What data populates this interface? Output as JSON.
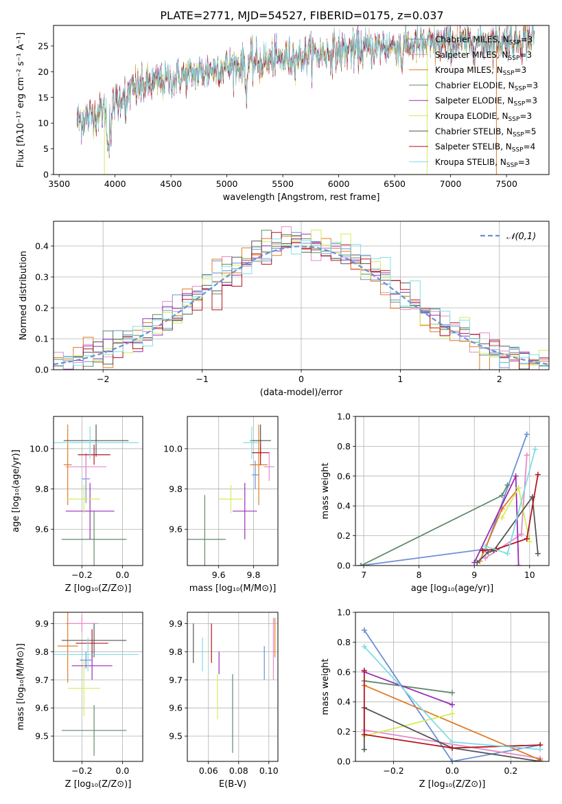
{
  "title": "PLATE=2771, MJD=54527, FIBERID=0175, z=0.037",
  "models": [
    {
      "name": "Chabrier MILES",
      "nssp": "3",
      "color": "#6b8fd6"
    },
    {
      "name": "Salpeter MILES",
      "nssp": "3",
      "color": "#e58ac9"
    },
    {
      "name": "Kroupa MILES",
      "nssp": "3",
      "color": "#e07b25"
    },
    {
      "name": "Chabrier ELODIE",
      "nssp": "3",
      "color": "#5e8a6a"
    },
    {
      "name": "Salpeter ELODIE",
      "nssp": "3",
      "color": "#9b2bb5"
    },
    {
      "name": "Kroupa ELODIE",
      "nssp": "3",
      "color": "#d4ec5a"
    },
    {
      "name": "Chabrier STELIB",
      "nssp": "5",
      "color": "#555555"
    },
    {
      "name": "Salpeter STELIB",
      "nssp": "4",
      "color": "#b3151c"
    },
    {
      "name": "Kroupa STELIB",
      "nssp": "3",
      "color": "#7fdde6"
    }
  ],
  "chart_data": [
    {
      "id": "spectrum",
      "type": "line",
      "xlabel": "wavelength [Angstrom, rest frame]",
      "ylabel": "Flux [fλ10⁻¹⁷ erg cm⁻² s⁻¹ A⁻¹]",
      "xlim": [
        3450,
        7880
      ],
      "ylim": [
        0,
        29
      ],
      "xticks": [
        3500,
        4000,
        4500,
        5000,
        5500,
        6000,
        6500,
        7000,
        7500
      ],
      "yticks": [
        0,
        5,
        10,
        15,
        20,
        25
      ],
      "grid": false,
      "legend": "top-right",
      "x_range": [
        3660,
        7750
      ],
      "continuum_points": [
        [
          3660,
          10.5
        ],
        [
          3800,
          11.5
        ],
        [
          3950,
          13
        ],
        [
          4100,
          16
        ],
        [
          4300,
          17.5
        ],
        [
          4600,
          19
        ],
        [
          5000,
          21
        ],
        [
          5500,
          22.5
        ],
        [
          6000,
          24
        ],
        [
          6500,
          25
        ],
        [
          7000,
          25.5
        ],
        [
          7500,
          26
        ],
        [
          7750,
          26.5
        ]
      ]
    },
    {
      "id": "residuals",
      "type": "step",
      "xlabel": "(data-model)/error",
      "ylabel": "Normed distribution",
      "xlim": [
        -2.5,
        2.5
      ],
      "ylim": [
        0,
        0.48
      ],
      "xticks": [
        -2,
        -1,
        0,
        1,
        2
      ],
      "yticks": [
        0,
        0.1,
        0.2,
        0.3,
        0.4
      ],
      "grid": true,
      "legend": "top-right",
      "reference_curve": {
        "name": "𝒩(0,1)",
        "mean": 0,
        "std": 1,
        "color": "#6b8fd6"
      },
      "bin_width": 0.1
    },
    {
      "id": "age_vs_Z",
      "type": "errorbar",
      "xlabel": "Z [log₁₀(Z/Z⊙)]",
      "ylabel": "age  [log₁₀(age/yr)]",
      "xlim": [
        -0.34,
        0.1
      ],
      "ylim": [
        9.42,
        10.16
      ],
      "xticks": [
        -0.2,
        0.0
      ],
      "yticks": [
        9.6,
        9.8,
        10.0
      ],
      "grid": true,
      "points": [
        {
          "x": -0.18,
          "xerr": 0.02,
          "y": 9.85,
          "yerr": 0.12
        },
        {
          "x": -0.18,
          "xerr": 0.1,
          "y": 9.91,
          "yerr": 0.07
        },
        {
          "x": -0.27,
          "xerr": 0.02,
          "y": 9.92,
          "yerr": 0.2
        },
        {
          "x": -0.14,
          "xerr": 0.16,
          "y": 9.55,
          "yerr": 0.14
        },
        {
          "x": -0.16,
          "xerr": 0.12,
          "y": 9.69,
          "yerr": 0.14
        },
        {
          "x": -0.19,
          "xerr": 0.08,
          "y": 9.75,
          "yerr": 0.07
        },
        {
          "x": -0.13,
          "xerr": 0.16,
          "y": 10.04,
          "yerr": 0.08
        },
        {
          "x": -0.14,
          "xerr": 0.08,
          "y": 9.97,
          "yerr": 0.05
        },
        {
          "x": -0.16,
          "xerr": 0.24,
          "y": 10.03,
          "yerr": 0.08
        }
      ]
    },
    {
      "id": "age_vs_mass",
      "type": "errorbar",
      "xlabel": "mass [log₁₀(M/M⊙)]",
      "ylabel": "",
      "xlim": [
        9.42,
        9.94
      ],
      "ylim": [
        9.42,
        10.16
      ],
      "xticks": [
        9.6,
        9.8
      ],
      "yticks": [
        9.6,
        9.8,
        10.0
      ],
      "grid": true,
      "points": [
        {
          "x": 9.81,
          "xerr": 0.02,
          "y": 9.87,
          "yerr": 0.07
        },
        {
          "x": 9.89,
          "xerr": 0.03,
          "y": 9.91,
          "yerr": 0.07
        },
        {
          "x": 9.83,
          "xerr": 0.05,
          "y": 9.92,
          "yerr": 0.2
        },
        {
          "x": 9.52,
          "xerr": 0.12,
          "y": 9.55,
          "yerr": 0.22
        },
        {
          "x": 9.75,
          "xerr": 0.07,
          "y": 9.69,
          "yerr": 0.14
        },
        {
          "x": 9.67,
          "xerr": 0.07,
          "y": 9.75,
          "yerr": 0.07
        },
        {
          "x": 9.84,
          "xerr": 0.06,
          "y": 10.04,
          "yerr": 0.08
        },
        {
          "x": 9.84,
          "xerr": 0.05,
          "y": 9.98,
          "yerr": 0.06
        },
        {
          "x": 9.79,
          "xerr": 0.05,
          "y": 10.03,
          "yerr": 0.08
        }
      ]
    },
    {
      "id": "weight_vs_age",
      "type": "line",
      "xlabel": "age  [log₁₀(age/yr)]",
      "ylabel": "mass weight",
      "xlim": [
        6.85,
        10.35
      ],
      "ylim": [
        0,
        1.0
      ],
      "xticks": [
        7,
        8,
        9,
        10
      ],
      "yticks": [
        0.0,
        0.2,
        0.4,
        0.6,
        0.8,
        1.0
      ],
      "grid": true,
      "series": [
        {
          "x": [
            6.95,
            9.2,
            9.95
          ],
          "y": [
            0.0,
            0.11,
            0.88
          ]
        },
        {
          "x": [
            9.2,
            9.85,
            9.95
          ],
          "y": [
            0.05,
            0.21,
            0.74
          ]
        },
        {
          "x": [
            9.1,
            9.5,
            9.8
          ],
          "y": [
            0.03,
            0.38,
            0.52
          ]
        },
        {
          "x": [
            6.95,
            9.5,
            9.6
          ],
          "y": [
            0.0,
            0.47,
            0.54
          ]
        },
        {
          "x": [
            9.0,
            9.75,
            9.8
          ],
          "y": [
            0.02,
            0.6,
            0.0
          ]
        },
        {
          "x": [
            9.5,
            9.8,
            10.0
          ],
          "y": [
            0.32,
            0.52,
            0.16
          ]
        },
        {
          "x": [
            9.05,
            9.25,
            9.35,
            10.05,
            10.15
          ],
          "y": [
            0.02,
            0.09,
            0.1,
            0.46,
            0.08
          ]
        },
        {
          "x": [
            9.15,
            9.4,
            9.95,
            10.15
          ],
          "y": [
            0.1,
            0.11,
            0.18,
            0.61
          ]
        },
        {
          "x": [
            9.2,
            9.6,
            10.1
          ],
          "y": [
            0.13,
            0.08,
            0.78
          ]
        }
      ]
    },
    {
      "id": "mass_vs_Z",
      "type": "errorbar",
      "xlabel": "Z [log₁₀(Z/Z⊙)]",
      "ylabel": "mass [log₁₀(M/M⊙)]",
      "xlim": [
        -0.34,
        0.1
      ],
      "ylim": [
        9.41,
        9.94
      ],
      "xticks": [
        -0.2,
        0.0
      ],
      "yticks": [
        9.5,
        9.6,
        9.7,
        9.8,
        9.9
      ],
      "grid": true,
      "points": [
        {
          "x": -0.18,
          "xerr": 0.03,
          "y": 9.77,
          "yerr": 0.03
        },
        {
          "x": -0.2,
          "xerr": 0.08,
          "y": 9.9,
          "yerr": 0.03
        },
        {
          "x": -0.27,
          "xerr": 0.05,
          "y": 9.82,
          "yerr": 0.13
        },
        {
          "x": -0.14,
          "xerr": 0.16,
          "y": 9.52,
          "yerr": 0.09
        },
        {
          "x": -0.15,
          "xerr": 0.1,
          "y": 9.75,
          "yerr": 0.05
        },
        {
          "x": -0.19,
          "xerr": 0.08,
          "y": 9.67,
          "yerr": 0.1
        },
        {
          "x": -0.14,
          "xerr": 0.16,
          "y": 9.84,
          "yerr": 0.06
        },
        {
          "x": -0.15,
          "xerr": 0.08,
          "y": 9.83,
          "yerr": 0.05
        },
        {
          "x": -0.17,
          "xerr": 0.25,
          "y": 9.79,
          "yerr": 0.06
        }
      ]
    },
    {
      "id": "mass_vs_ebv",
      "type": "errorbar",
      "xlabel": "E(B-V)",
      "ylabel": "",
      "xlim": [
        0.046,
        0.106
      ],
      "ylim": [
        9.41,
        9.94
      ],
      "xticks": [
        0.06,
        0.08,
        0.1
      ],
      "yticks": [
        9.5,
        9.6,
        9.7,
        9.8,
        9.9
      ],
      "grid": true,
      "points": [
        {
          "x": 0.097,
          "xerr": 0.0,
          "y": 9.76,
          "yerr": 0.06
        },
        {
          "x": 0.103,
          "xerr": 0.0,
          "y": 9.81,
          "yerr": 0.11
        },
        {
          "x": 0.104,
          "xerr": 0.0,
          "y": 9.85,
          "yerr": 0.07
        },
        {
          "x": 0.076,
          "xerr": 0.0,
          "y": 9.58,
          "yerr": 0.14
        },
        {
          "x": 0.067,
          "xerr": 0.0,
          "y": 9.76,
          "yerr": 0.04
        },
        {
          "x": 0.066,
          "xerr": 0.0,
          "y": 9.64,
          "yerr": 0.08
        },
        {
          "x": 0.05,
          "xerr": 0.0,
          "y": 9.83,
          "yerr": 0.07
        },
        {
          "x": 0.062,
          "xerr": 0.0,
          "y": 9.83,
          "yerr": 0.07
        },
        {
          "x": 0.056,
          "xerr": 0.0,
          "y": 9.79,
          "yerr": 0.06
        }
      ]
    },
    {
      "id": "weight_vs_Z",
      "type": "line",
      "xlabel": "Z [log₁₀(Z/Z⊙)]",
      "ylabel": "mass weight",
      "xlim": [
        -0.33,
        0.33
      ],
      "ylim": [
        0,
        1.0
      ],
      "xticks": [
        -0.2,
        0.0,
        0.2
      ],
      "yticks": [
        0.0,
        0.2,
        0.4,
        0.6,
        0.8,
        1.0
      ],
      "grid": true,
      "series": [
        {
          "x": [
            -0.3,
            0.0,
            0.3
          ],
          "y": [
            0.88,
            0.0,
            0.11
          ]
        },
        {
          "x": [
            -0.3,
            0.3
          ],
          "y": [
            0.21,
            0.02
          ]
        },
        {
          "x": [
            -0.3,
            0.3
          ],
          "y": [
            0.51,
            0.01
          ]
        },
        {
          "x": [
            -0.3,
            0.0
          ],
          "y": [
            0.54,
            0.46
          ]
        },
        {
          "x": [
            -0.3,
            0.0
          ],
          "y": [
            0.6,
            0.38
          ]
        },
        {
          "x": [
            -0.3,
            0.0
          ],
          "y": [
            0.17,
            0.32
          ]
        },
        {
          "x": [
            -0.3,
            -0.3,
            0.0,
            0.3
          ],
          "y": [
            0.08,
            0.36,
            0.09,
            0.0
          ]
        },
        {
          "x": [
            -0.3,
            -0.3,
            0.0,
            0.3
          ],
          "y": [
            0.61,
            0.18,
            0.09,
            0.11
          ]
        },
        {
          "x": [
            -0.3,
            0.0,
            0.3
          ],
          "y": [
            0.77,
            0.13,
            0.08
          ]
        }
      ]
    }
  ]
}
